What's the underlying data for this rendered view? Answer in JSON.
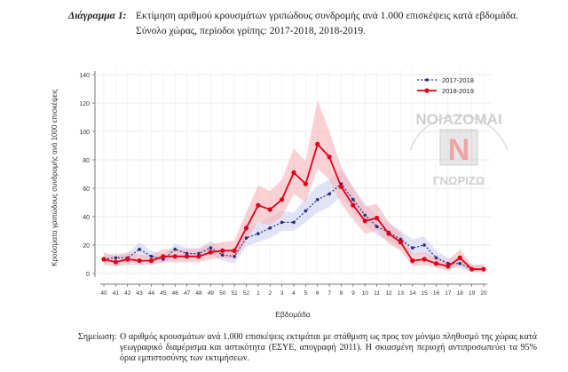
{
  "header": {
    "diagram_label": "Διάγραμμα 1:",
    "title_line1": "Εκτίμηση αριθμού κρουσμάτων γριπώδους συνδρομής ανά 1.000 επισκέψεις κατά εβδομάδα.",
    "title_line2": "Σύνολο χώρας, περίοδοι γρίπης:  2017-2018, 2018-2019."
  },
  "note": {
    "label": "Σημείωση:",
    "text": "Ο αριθμός κρουσμάτων ανά 1.000 επισκέψεις εκτιμάται με στάθμιση ως προς τον μόνιμο πληθυσμό της χώρας κατά γεωγραφικό διαμέρισμα και αστικότητα (ΕΣΥΕ, απογραφή 2011). Η σκιασμένη περιοχή αντιπροσωπεύει τα 95% όρια εμπιστοσύνης των εκτιμήσεων."
  },
  "watermark": {
    "text": "ΝΟΙΑΖΟΜΑΙ",
    "text2": "ΓΝΩΡΙΖΩ",
    "letter": "N",
    "color": "#888888",
    "accent": "#cc0000"
  },
  "chart_data": {
    "type": "line",
    "categories": [
      "40",
      "41",
      "42",
      "43",
      "44",
      "45",
      "46",
      "47",
      "48",
      "49",
      "50",
      "51",
      "52",
      "1",
      "2",
      "3",
      "4",
      "5",
      "6",
      "7",
      "8",
      "9",
      "10",
      "11",
      "12",
      "13",
      "14",
      "15",
      "16",
      "17",
      "18",
      "19",
      "20"
    ],
    "xlabel": "Εβδομάδα",
    "ylabel": "Κρούσματα γριπώδους συνδρομής ανά 1000 επισκέψεις",
    "ylim": [
      0,
      140
    ],
    "yticks": [
      0,
      20,
      40,
      60,
      80,
      100,
      120,
      140
    ],
    "grid": true,
    "legend_position": "top-right",
    "series": [
      {
        "name": "2017-2018",
        "color": "#2b2b7a",
        "style": "dotted",
        "values": [
          10,
          11,
          11,
          17,
          12,
          10,
          17,
          14,
          14,
          18,
          13,
          12,
          25,
          28,
          32,
          36,
          36,
          44,
          52,
          56,
          63,
          52,
          41,
          33,
          29,
          24,
          18,
          20,
          11,
          7,
          7,
          3,
          3
        ],
        "ci_low": [
          7,
          8,
          8,
          12,
          9,
          7,
          13,
          11,
          11,
          14,
          9,
          7,
          19,
          22,
          25,
          30,
          30,
          36,
          43,
          47,
          54,
          44,
          34,
          27,
          23,
          18,
          13,
          14,
          7,
          4,
          4,
          1,
          1
        ],
        "ci_high": [
          13,
          14,
          14,
          22,
          16,
          13,
          21,
          18,
          18,
          23,
          17,
          17,
          32,
          35,
          40,
          44,
          43,
          53,
          62,
          66,
          73,
          61,
          49,
          40,
          36,
          30,
          24,
          26,
          16,
          11,
          11,
          6,
          6
        ],
        "band_color": "#c9cdf0"
      },
      {
        "name": "2018-2019",
        "color": "#e0001a",
        "style": "solid",
        "values": [
          10,
          8,
          10,
          9,
          9,
          12,
          12,
          12,
          12,
          15,
          16,
          16,
          32,
          48,
          45,
          52,
          71,
          63,
          91,
          82,
          61,
          48,
          37,
          39,
          28,
          22,
          9,
          10,
          7,
          5,
          11,
          3,
          3
        ],
        "ci_low": [
          6,
          5,
          6,
          6,
          6,
          8,
          8,
          8,
          8,
          10,
          11,
          10,
          23,
          36,
          34,
          40,
          56,
          50,
          74,
          66,
          49,
          38,
          28,
          30,
          21,
          16,
          5,
          6,
          4,
          2,
          6,
          1,
          1
        ],
        "ci_high": [
          15,
          12,
          15,
          13,
          13,
          17,
          17,
          17,
          17,
          21,
          22,
          23,
          43,
          62,
          58,
          66,
          88,
          79,
          122,
          100,
          75,
          60,
          47,
          49,
          36,
          29,
          14,
          15,
          11,
          9,
          17,
          6,
          6
        ],
        "band_color": "#f6b3b8"
      }
    ]
  }
}
